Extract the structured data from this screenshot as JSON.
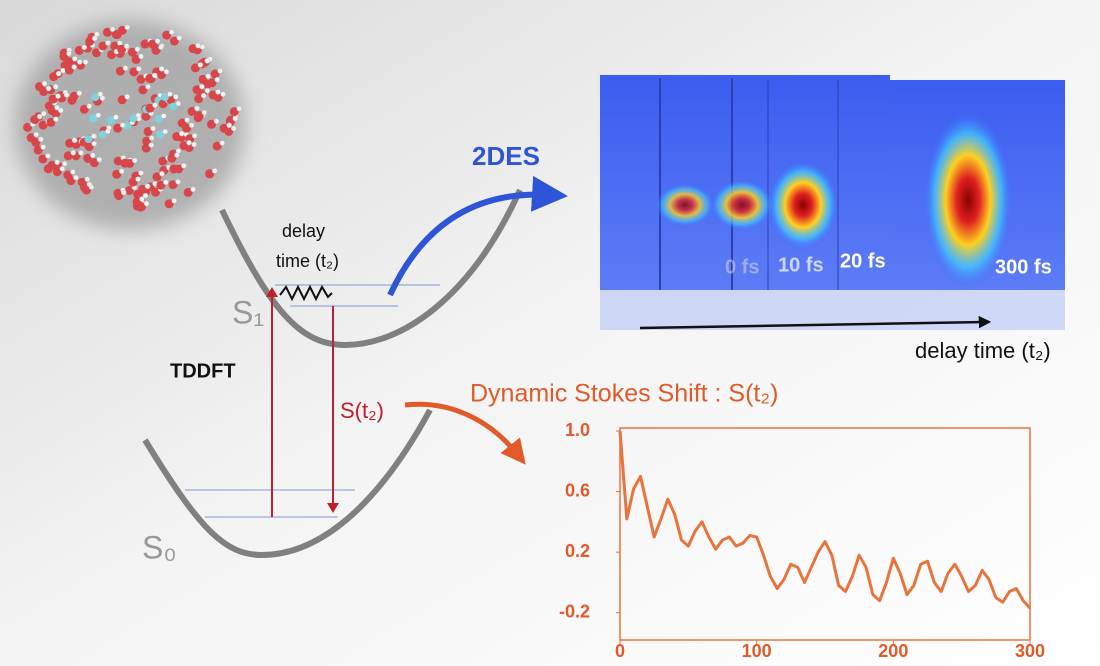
{
  "diagram": {
    "s1": "S₁",
    "s0": "S₀",
    "tddft": "TDDFT",
    "stokes": "S(t₂)",
    "delay_wavepacket": [
      "delay",
      "time (t₂)"
    ],
    "two_des": "2DES",
    "panels": [
      "0 fs",
      "10 fs",
      "20 fs",
      "300 fs"
    ],
    "delay_axis": "delay time (t₂)"
  },
  "chart_data": {
    "type": "line",
    "title": "Dynamic Stokes Shift : S(t₂)",
    "x": [
      0,
      5,
      10,
      15,
      20,
      25,
      30,
      35,
      40,
      45,
      50,
      55,
      60,
      65,
      70,
      75,
      80,
      85,
      90,
      95,
      100,
      105,
      110,
      115,
      120,
      125,
      130,
      135,
      140,
      145,
      150,
      155,
      160,
      165,
      170,
      175,
      180,
      185,
      190,
      195,
      200,
      205,
      210,
      215,
      220,
      225,
      230,
      235,
      240,
      245,
      250,
      255,
      260,
      265,
      270,
      275,
      280,
      285,
      290,
      295,
      300
    ],
    "series": [
      {
        "color": "#e8733c",
        "values": [
          1.0,
          0.42,
          0.62,
          0.7,
          0.5,
          0.3,
          0.42,
          0.55,
          0.45,
          0.28,
          0.24,
          0.34,
          0.4,
          0.3,
          0.22,
          0.28,
          0.3,
          0.24,
          0.26,
          0.31,
          0.3,
          0.18,
          0.04,
          -0.04,
          0.02,
          0.12,
          0.1,
          0.0,
          0.1,
          0.2,
          0.27,
          0.18,
          -0.02,
          -0.06,
          0.04,
          0.18,
          0.1,
          -0.08,
          -0.12,
          0.0,
          0.16,
          0.06,
          -0.08,
          -0.02,
          0.12,
          0.14,
          0.0,
          -0.06,
          0.06,
          0.12,
          0.04,
          -0.06,
          -0.02,
          0.08,
          0.02,
          -0.1,
          -0.13,
          -0.06,
          -0.04,
          -0.12,
          -0.17
        ]
      }
    ],
    "xlim": [
      0,
      300
    ],
    "xticks": [
      0,
      100,
      200,
      300
    ],
    "ylim": [
      -0.38,
      1.02
    ],
    "yticks": [
      {
        "value": 1,
        "label": "1.0"
      },
      0.6,
      0.2,
      -0.2
    ]
  }
}
